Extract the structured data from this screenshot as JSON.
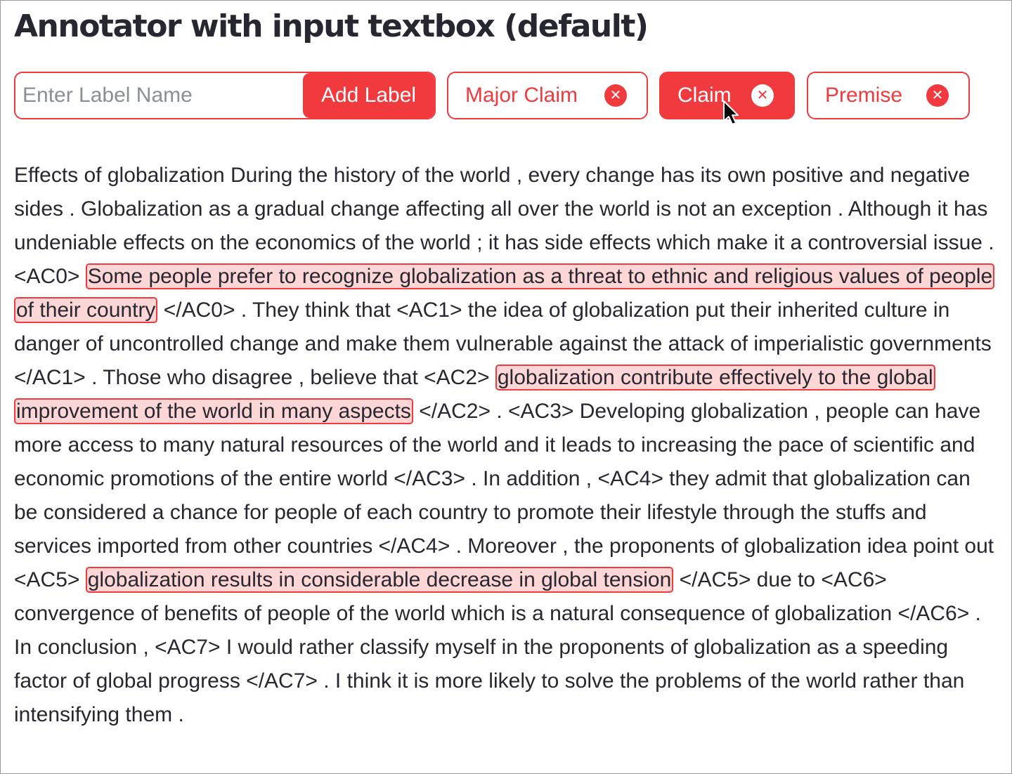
{
  "page": {
    "title": "Annotator with input textbox (default)"
  },
  "label_input": {
    "placeholder": "Enter Label Name",
    "value": ""
  },
  "add_button": {
    "label": "Add Label"
  },
  "labels": [
    {
      "name": "Major Claim",
      "active": false,
      "remove_icon": "close-circle-icon"
    },
    {
      "name": "Claim",
      "active": true,
      "remove_icon": "close-circle-icon"
    },
    {
      "name": "Premise",
      "active": false,
      "remove_icon": "close-circle-icon"
    }
  ],
  "colors": {
    "accent": "#f03a3e",
    "highlight_fill": "#ffd6d6",
    "text": "#262730"
  },
  "document": {
    "segments": [
      {
        "text": "Effects of globalization During the history of the world , every change has its own positive and negative sides . Globalization as a gradual change affecting all over the world is not an exception . Although it has undeniable effects on the economics of the world ; it has side effects which make it a controversial issue . <AC0> ",
        "highlight": false
      },
      {
        "text": "Some people prefer to recognize globalization as a threat to ethnic and religious values of people of their country",
        "highlight": true
      },
      {
        "text": " </AC0> . They think that <AC1> the idea of globalization put their inherited culture in danger of uncontrolled change and make them vulnerable against the attack of imperialistic governments </AC1> . Those who disagree , believe that <AC2> ",
        "highlight": false
      },
      {
        "text": "globalization contribute effectively to the global improvement of the world in many aspects",
        "highlight": true
      },
      {
        "text": " </AC2> . <AC3> Developing globalization , people can have more access to many natural resources of the world and it leads to increasing the pace of scientific and economic promotions of the entire world </AC3> . In addition , <AC4> they admit that globalization can be considered a chance for people of each country to promote their lifestyle through the stuffs and services imported from other countries </AC4> . Moreover , the proponents of globalization idea point out <AC5> ",
        "highlight": false
      },
      {
        "text": "globalization results in considerable decrease in global tension",
        "highlight": true
      },
      {
        "text": " </AC5> due to <AC6> convergence of benefits of people of the world which is a natural consequence of globalization </AC6> . In conclusion , <AC7> I would rather classify myself in the proponents of globalization as a speeding factor of global progress </AC7> . I think it is more likely to solve the problems of the world rather than intensifying them .",
        "highlight": false
      }
    ]
  }
}
